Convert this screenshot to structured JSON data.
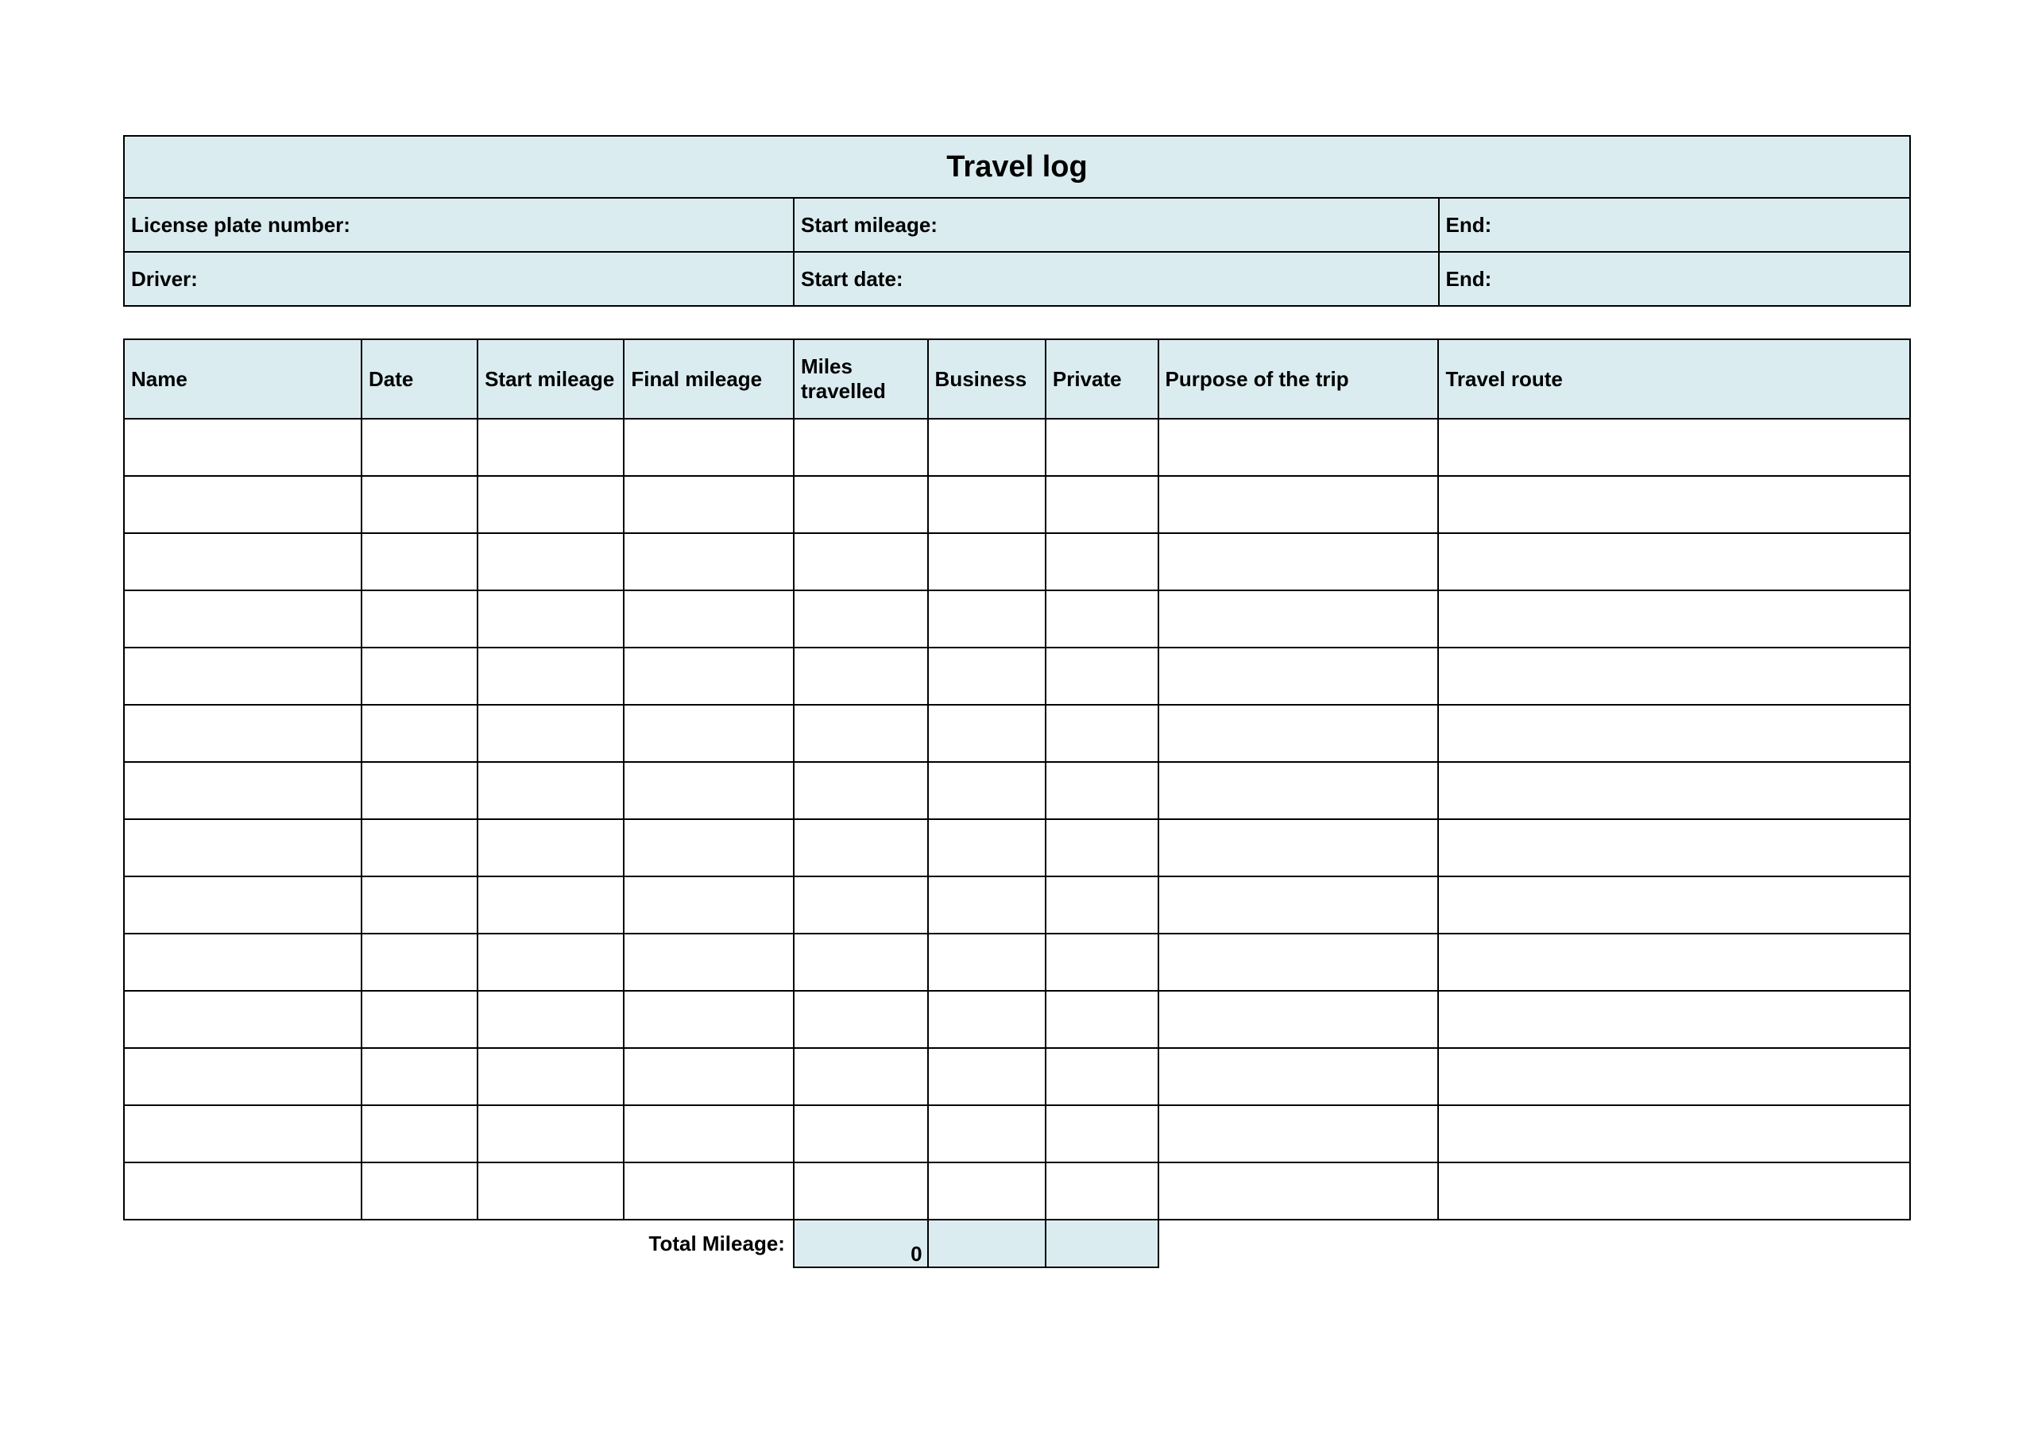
{
  "colors": {
    "header_bg": "#dbecf0",
    "border": "#000000",
    "page_bg": "#ffffff"
  },
  "header": {
    "title": "Travel log",
    "license_plate_label": "License plate number:",
    "start_mileage_label": "Start mileage:",
    "end_mileage_label": "End:",
    "driver_label": "Driver:",
    "start_date_label": "Start date:",
    "end_date_label": "End:"
  },
  "log": {
    "columns": [
      "Name",
      "Date",
      "Start mileage",
      "Final mileage",
      "Miles travelled",
      "Business",
      "Private",
      "Purpose of the trip",
      "Travel route"
    ],
    "column_widths_pct": [
      13.3,
      6.5,
      8.2,
      9.5,
      7.5,
      6.6,
      6.3,
      15.7,
      26.4
    ],
    "row_count": 14
  },
  "totals": {
    "label": "Total Mileage:",
    "miles_travelled": "0",
    "business": "",
    "private": ""
  }
}
